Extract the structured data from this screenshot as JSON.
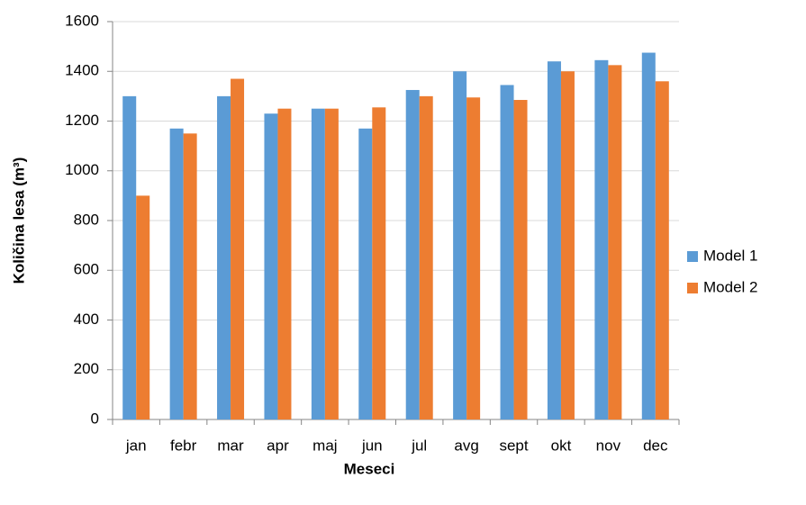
{
  "chart_data": {
    "type": "bar",
    "categories": [
      "jan",
      "febr",
      "mar",
      "apr",
      "maj",
      "jun",
      "jul",
      "avg",
      "sept",
      "okt",
      "nov",
      "dec"
    ],
    "series": [
      {
        "name": "Model 1",
        "color": "#5b9bd5",
        "values": [
          1300,
          1170,
          1300,
          1230,
          1250,
          1170,
          1325,
          1400,
          1345,
          1440,
          1445,
          1475
        ]
      },
      {
        "name": "Model 2",
        "color": "#ed7d31",
        "values": [
          900,
          1150,
          1370,
          1250,
          1250,
          1255,
          1300,
          1295,
          1285,
          1400,
          1425,
          1360
        ]
      }
    ],
    "x_label": "Meseci",
    "y_label": "Količina lesa (m³)",
    "ylim": [
      0,
      1600
    ],
    "yticks": [
      0,
      200,
      400,
      600,
      800,
      1000,
      1200,
      1400,
      1600
    ],
    "grid": true,
    "legend_position": "right"
  }
}
